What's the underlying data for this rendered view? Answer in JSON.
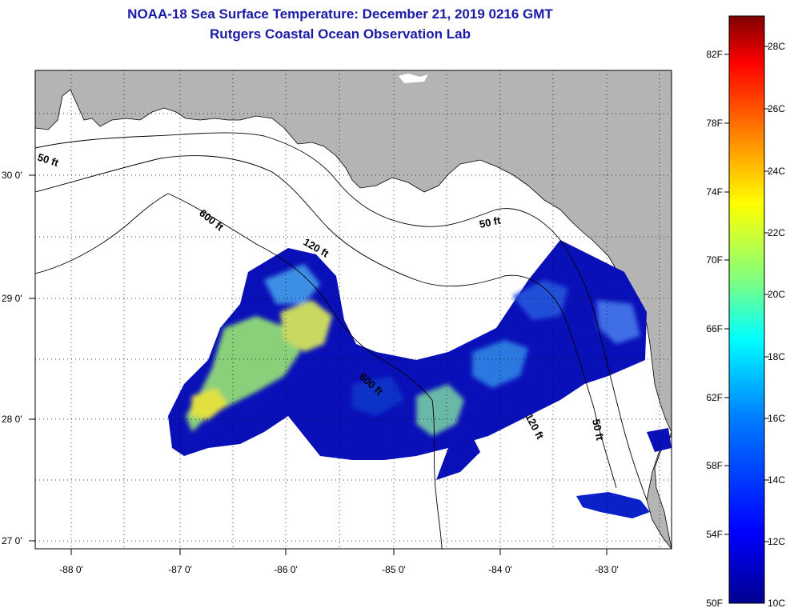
{
  "header": {
    "title": "NOAA-18 Sea Surface Temperature:  December 21, 2019 0216 GMT",
    "subtitle": "Rutgers Coastal Ocean Observation Lab"
  },
  "map": {
    "longitude_labels": [
      "-88 0'",
      "-87 0'",
      "-86 0'",
      "-85 0'",
      "-84 0'",
      "-83 0'"
    ],
    "latitude_labels": [
      "30 0'",
      "29 0'",
      "28 0'",
      "27 0'"
    ],
    "isobath_labels": {
      "ft50_west": "50 ft",
      "ft600": "600 ft",
      "ft120_north": "120 ft",
      "ft50_east": "50 ft",
      "ft600_south": "600 ft",
      "ft120_south": "120 ft",
      "ft50_south": "50 ft"
    },
    "colors": {
      "land": "#b4b4b4",
      "ocean_nodata": "#ffffff",
      "grid": "#000000"
    }
  },
  "colorbar": {
    "fahrenheit_labels": [
      "82F",
      "78F",
      "74F",
      "70F",
      "66F",
      "62F",
      "58F",
      "54F",
      "50F"
    ],
    "celsius_labels": [
      "28C",
      "26C",
      "24C",
      "22C",
      "20C",
      "18C",
      "16C",
      "14C",
      "12C",
      "10C"
    ],
    "colors": [
      "#7f0000",
      "#ff0000",
      "#ff8000",
      "#ffff00",
      "#80ff80",
      "#00ffff",
      "#0080ff",
      "#0000ff",
      "#00008f"
    ]
  }
}
